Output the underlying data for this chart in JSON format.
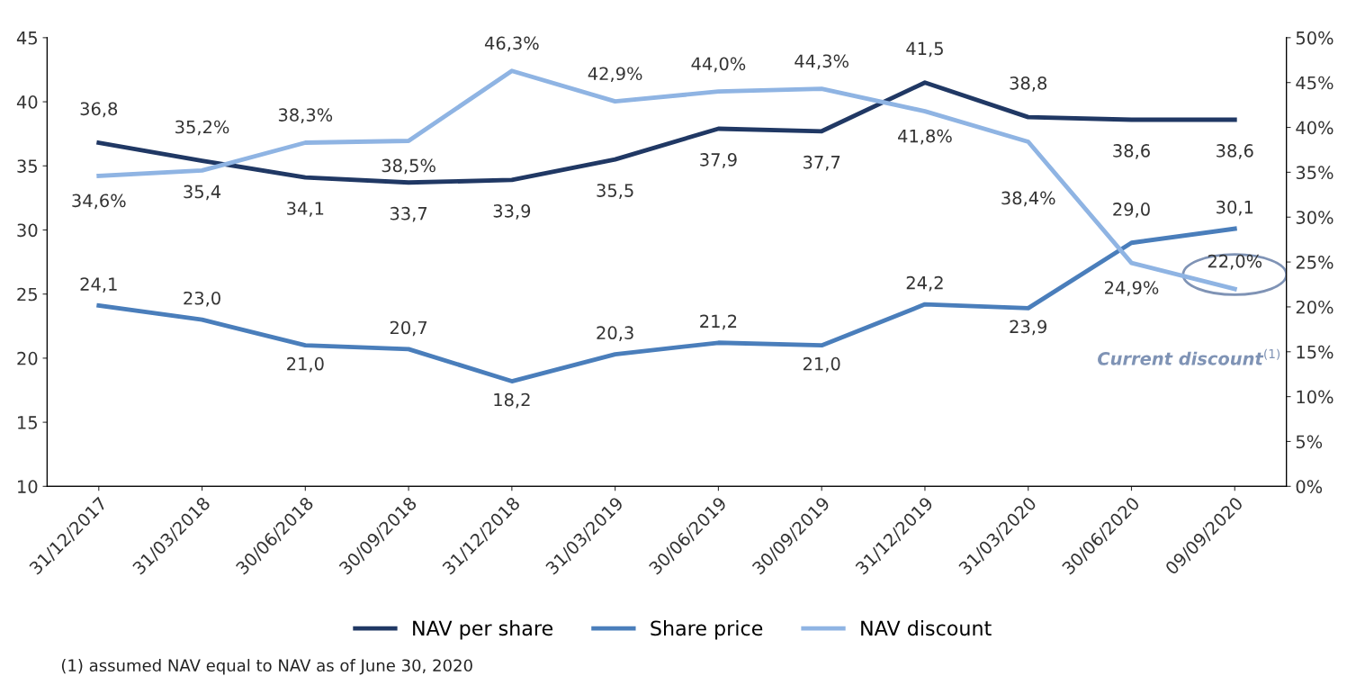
{
  "chart_data": {
    "type": "line",
    "categories": [
      "31/12/2017",
      "31/03/2018",
      "30/06/2018",
      "30/09/2018",
      "31/12/2018",
      "31/03/2019",
      "30/06/2019",
      "30/09/2019",
      "31/12/2019",
      "31/03/2020",
      "30/06/2020",
      "09/09/2020"
    ],
    "series": [
      {
        "name": "NAV per share",
        "color": "#203864",
        "values": [
          36.8,
          35.4,
          34.1,
          33.7,
          33.9,
          35.5,
          37.9,
          37.7,
          41.5,
          38.8,
          38.6,
          38.6
        ],
        "value_labels": [
          "36,8",
          "35,4",
          "34,1",
          "33,7",
          "33,9",
          "35,5",
          "37,9",
          "37,7",
          "41,5",
          "38,8",
          "38,6",
          "38,6"
        ]
      },
      {
        "name": "Share price",
        "color": "#4a7ebb",
        "values": [
          24.1,
          23.0,
          21.0,
          20.7,
          18.2,
          20.3,
          21.2,
          21.0,
          24.2,
          23.9,
          29.0,
          30.1
        ],
        "value_labels": [
          "24,1",
          "23,0",
          "21,0",
          "20,7",
          "18,2",
          "20,3",
          "21,2",
          "21,0",
          "24,2",
          "23,9",
          "29,0",
          "30,1"
        ]
      },
      {
        "name": "NAV discount",
        "color": "#8fb4e3",
        "axis": "y2",
        "values": [
          34.6,
          35.2,
          38.3,
          38.5,
          46.3,
          42.9,
          44.0,
          44.3,
          41.8,
          38.4,
          24.9,
          22.0
        ],
        "value_labels": [
          "34,6%",
          "35,2%",
          "38,3%",
          "38,5%",
          "46,3%",
          "42,9%",
          "44,0%",
          "44,3%",
          "41,8%",
          "38,4%",
          "24,9%",
          "22,0%"
        ]
      }
    ],
    "ylim": [
      10,
      45
    ],
    "yticks": [
      10,
      15,
      20,
      25,
      30,
      35,
      40,
      45
    ],
    "y2lim": [
      0,
      50
    ],
    "y2ticks": [
      {
        "value": 0,
        "label": "0%"
      },
      {
        "value": 5,
        "label": "5%"
      },
      {
        "value": 10,
        "label": "10%"
      },
      {
        "value": 15,
        "label": "15%"
      },
      {
        "value": 20,
        "label": "20%"
      },
      {
        "value": 25,
        "label": "25%"
      },
      {
        "value": 30,
        "label": "30%"
      },
      {
        "value": 35,
        "label": "35%"
      },
      {
        "value": 40,
        "label": "40%"
      },
      {
        "value": 45,
        "label": "45%"
      },
      {
        "value": 50,
        "label": "50%"
      }
    ],
    "annotations": [
      "Current discount$^{(1)}$",
      "(1) assumed NAV equal to NAV as of June 30, 2020"
    ],
    "legend": "bottom",
    "grid": false,
    "marker": "none",
    "line_style": "solid"
  }
}
